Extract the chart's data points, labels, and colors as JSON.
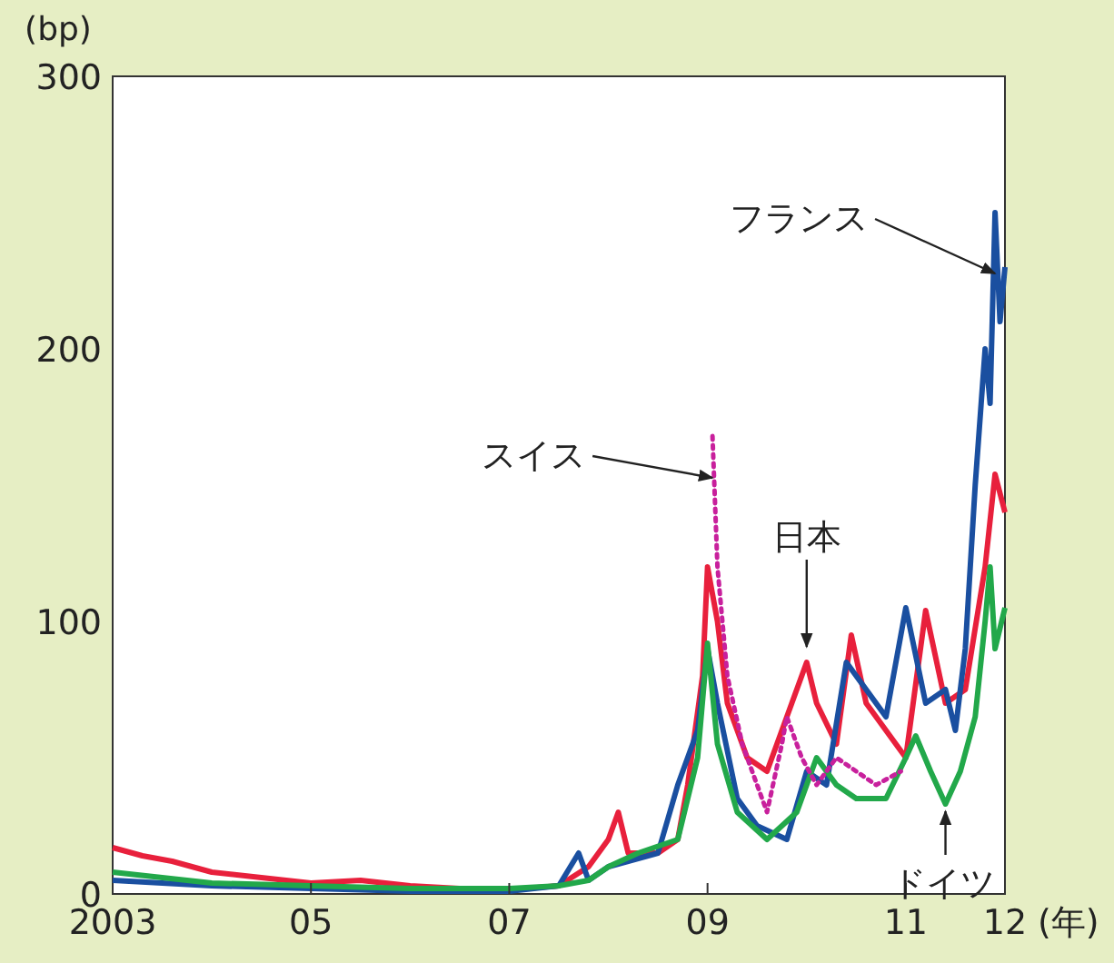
{
  "chart_data": {
    "type": "line",
    "ylabel": "(bp)",
    "xlim": [
      2003,
      2012
    ],
    "ylim": [
      0,
      300
    ],
    "xticks": [
      2003,
      {
        "value": 2005,
        "label": "05"
      },
      {
        "value": 2007,
        "label": "07"
      },
      {
        "value": 2009,
        "label": "09"
      },
      {
        "value": 2011,
        "label": "11"
      },
      {
        "value": 2012,
        "label": "12"
      }
    ],
    "xlabel": "(年)",
    "yticks": [
      0,
      100,
      200,
      300
    ],
    "grid": false,
    "series": [
      {
        "color": "#e8203c",
        "x": [
          2003,
          2003.3,
          2003.6,
          2004,
          2004.5,
          2005,
          2005.5,
          2006,
          2006.5,
          2007,
          2007.5,
          2007.8,
          2008,
          2008.1,
          2008.2,
          2008.5,
          2008.7,
          2008.8,
          2008.95,
          2009,
          2009.1,
          2009.2,
          2009.4,
          2009.6,
          2009.8,
          2010,
          2010.1,
          2010.3,
          2010.45,
          2010.6,
          2010.8,
          2011,
          2011.2,
          2011.4,
          2011.6,
          2011.8,
          2011.9,
          2012
        ],
        "values": [
          17,
          14,
          12,
          8,
          6,
          4,
          5,
          3,
          2,
          1.5,
          3,
          10,
          20,
          30,
          15,
          15,
          20,
          40,
          80,
          120,
          100,
          70,
          50,
          45,
          65,
          85,
          70,
          55,
          95,
          70,
          60,
          50,
          104,
          70,
          75,
          120,
          154,
          140
        ]
      },
      {
        "color": "#1a4fa0",
        "x": [
          2003,
          2004,
          2005,
          2006,
          2007,
          2007.5,
          2007.7,
          2007.8,
          2008,
          2008.5,
          2008.7,
          2008.9,
          2009,
          2009.1,
          2009.3,
          2009.5,
          2009.8,
          2010,
          2010.2,
          2010.4,
          2010.6,
          2010.8,
          2011,
          2011.2,
          2011.4,
          2011.5,
          2011.6,
          2011.7,
          2011.8,
          2011.85,
          2011.9,
          2011.95,
          2012
        ],
        "values": [
          5,
          3,
          2,
          1,
          1,
          3,
          15,
          5,
          10,
          15,
          40,
          60,
          90,
          70,
          35,
          25,
          20,
          45,
          40,
          85,
          75,
          65,
          105,
          70,
          75,
          60,
          90,
          150,
          200,
          180,
          250,
          210,
          230
        ]
      },
      {
        "color": "#22a84a",
        "x": [
          2003,
          2004,
          2005,
          2006,
          2007,
          2007.5,
          2007.8,
          2008,
          2008.3,
          2008.7,
          2008.9,
          2009,
          2009.1,
          2009.3,
          2009.6,
          2009.9,
          2010.1,
          2010.3,
          2010.5,
          2010.8,
          2011,
          2011.1,
          2011.25,
          2011.4,
          2011.55,
          2011.7,
          2011.8,
          2011.85,
          2011.9,
          2012
        ],
        "values": [
          8,
          4,
          3,
          2,
          2,
          3,
          5,
          10,
          15,
          20,
          50,
          92,
          55,
          30,
          20,
          30,
          50,
          40,
          35,
          35,
          50,
          58,
          45,
          33,
          45,
          65,
          100,
          120,
          90,
          105
        ]
      },
      {
        "color": "#c8209c",
        "line_style": "dotted",
        "x": [
          2009.05,
          2009.1,
          2009.2,
          2009.35,
          2009.5,
          2009.6,
          2009.75,
          2009.8,
          2009.95,
          2010.1,
          2010.3,
          2010.5,
          2010.7,
          2010.95
        ],
        "values": [
          168,
          120,
          80,
          55,
          40,
          30,
          55,
          65,
          50,
          40,
          50,
          45,
          40,
          45
        ]
      }
    ],
    "annotations": [
      {
        "text": "フランス",
        "x": 2011.9,
        "y": 225
      },
      {
        "text": "スイス",
        "x": 2009.05,
        "y": 150
      },
      {
        "text": "日本",
        "x": 2010,
        "y": 88
      },
      {
        "text": "ドイツ",
        "x": 2011.4,
        "y": 33
      }
    ]
  }
}
